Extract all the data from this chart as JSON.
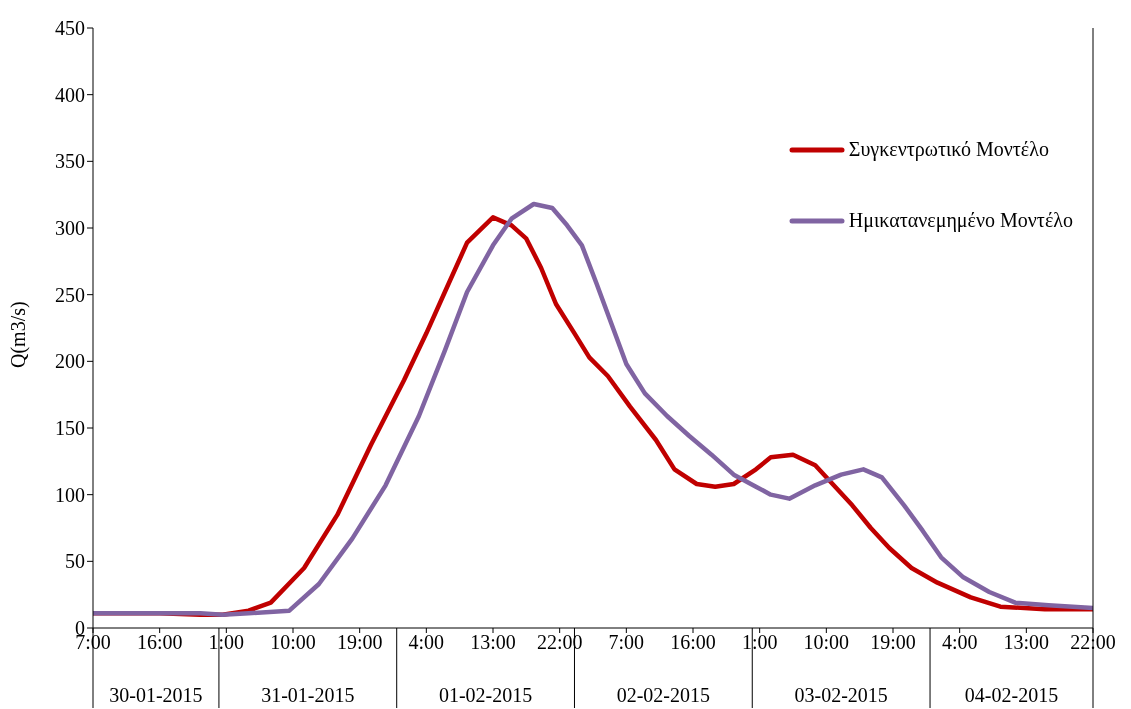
{
  "chart_data": {
    "type": "line",
    "ylabel": "Q(m3/s)",
    "legend": "top right",
    "xlim": [
      "2015-01-30T07:00",
      "2015-02-04T22:00"
    ],
    "xticks": [
      {
        "value": "2015-01-30T07:00",
        "label": "7:00"
      },
      {
        "value": "2015-01-30T16:00",
        "label": "16:00"
      },
      {
        "value": "2015-01-31T01:00",
        "label": "1:00"
      },
      {
        "value": "2015-01-31T10:00",
        "label": "10:00"
      },
      {
        "value": "2015-01-31T19:00",
        "label": "19:00"
      },
      {
        "value": "2015-02-01T04:00",
        "label": "4:00"
      },
      {
        "value": "2015-02-01T13:00",
        "label": "13:00"
      },
      {
        "value": "2015-02-01T22:00",
        "label": "22:00"
      },
      {
        "value": "2015-02-02T07:00",
        "label": "7:00"
      },
      {
        "value": "2015-02-02T16:00",
        "label": "16:00"
      },
      {
        "value": "2015-02-03T01:00",
        "label": "1:00"
      },
      {
        "value": "2015-02-03T10:00",
        "label": "10:00"
      },
      {
        "value": "2015-02-03T19:00",
        "label": "19:00"
      },
      {
        "value": "2015-02-04T04:00",
        "label": "4:00"
      },
      {
        "value": "2015-02-04T13:00",
        "label": "13:00"
      },
      {
        "value": "2015-02-04T22:00",
        "label": "22:00"
      }
    ],
    "ylim": [
      0,
      450
    ],
    "yticks": [
      0,
      50,
      100,
      150,
      200,
      250,
      300,
      350,
      400,
      450
    ],
    "annotations": [
      "30-01-2015",
      "31-01-2015",
      "01-02-2015",
      "02-02-2015",
      "03-02-2015",
      "04-02-2015"
    ],
    "series": [
      {
        "name": "Συγκεντρωτικό Μοντέλο",
        "color": "#c00000",
        "x": [
          "2015-01-30T07:00",
          "2015-01-30T16:00",
          "2015-01-30T21:30",
          "2015-01-31T00:30",
          "2015-01-31T04:00",
          "2015-01-31T07:00",
          "2015-01-31T11:30",
          "2015-01-31T16:00",
          "2015-01-31T20:30",
          "2015-02-01T01:00",
          "2015-02-01T04:00",
          "2015-02-01T06:30",
          "2015-02-01T09:30",
          "2015-02-01T13:00",
          "2015-02-01T15:30",
          "2015-02-01T17:30",
          "2015-02-01T19:30",
          "2015-02-01T21:30",
          "2015-02-02T00:00",
          "2015-02-02T02:00",
          "2015-02-02T04:30",
          "2015-02-02T07:30",
          "2015-02-02T11:00",
          "2015-02-02T13:30",
          "2015-02-02T16:30",
          "2015-02-02T19:00",
          "2015-02-02T21:30",
          "2015-02-03T00:30",
          "2015-02-03T02:30",
          "2015-02-03T05:30",
          "2015-02-03T08:30",
          "2015-02-03T11:00",
          "2015-02-03T13:30",
          "2015-02-03T16:00",
          "2015-02-03T18:30",
          "2015-02-03T21:30",
          "2015-02-04T01:00",
          "2015-02-04T05:30",
          "2015-02-04T09:30",
          "2015-02-04T15:30",
          "2015-02-04T22:00"
        ],
        "values": [
          11,
          11,
          10,
          10,
          13,
          19,
          45,
          85,
          137,
          186,
          221,
          252,
          289,
          308,
          302,
          292,
          270,
          243,
          221,
          203,
          189,
          166,
          141,
          119,
          108,
          106,
          108,
          119,
          128,
          130,
          122,
          107,
          92,
          75,
          60,
          45,
          34,
          23,
          16,
          14,
          14
        ]
      },
      {
        "name": "Ημικατανεμημένο Μοντέλο",
        "color": "#8064a2",
        "x": [
          "2015-01-30T07:00",
          "2015-01-30T21:30",
          "2015-01-31T00:30",
          "2015-01-31T04:00",
          "2015-01-31T09:30",
          "2015-01-31T13:30",
          "2015-01-31T18:00",
          "2015-01-31T22:30",
          "2015-02-01T03:00",
          "2015-02-01T06:30",
          "2015-02-01T09:30",
          "2015-02-01T13:00",
          "2015-02-01T15:30",
          "2015-02-01T18:30",
          "2015-02-01T21:00",
          "2015-02-01T23:00",
          "2015-02-02T01:00",
          "2015-02-02T03:00",
          "2015-02-02T05:00",
          "2015-02-02T07:00",
          "2015-02-02T09:30",
          "2015-02-02T12:30",
          "2015-02-02T15:30",
          "2015-02-02T18:30",
          "2015-02-02T21:30",
          "2015-02-03T00:30",
          "2015-02-03T02:30",
          "2015-02-03T05:00",
          "2015-02-03T08:30",
          "2015-02-03T12:00",
          "2015-02-03T15:00",
          "2015-02-03T17:30",
          "2015-02-03T20:30",
          "2015-02-03T23:00",
          "2015-02-04T01:30",
          "2015-02-04T04:30",
          "2015-02-04T08:00",
          "2015-02-04T11:30",
          "2015-02-04T16:00",
          "2015-02-04T22:00"
        ],
        "values": [
          11,
          11,
          10,
          11,
          13,
          33,
          67,
          107,
          159,
          208,
          252,
          287,
          307,
          318,
          315,
          302,
          287,
          258,
          228,
          198,
          176,
          159,
          144,
          130,
          115,
          106,
          100,
          97,
          107,
          115,
          119,
          113,
          92,
          73,
          53,
          38,
          27,
          19,
          17,
          15
        ]
      }
    ]
  }
}
